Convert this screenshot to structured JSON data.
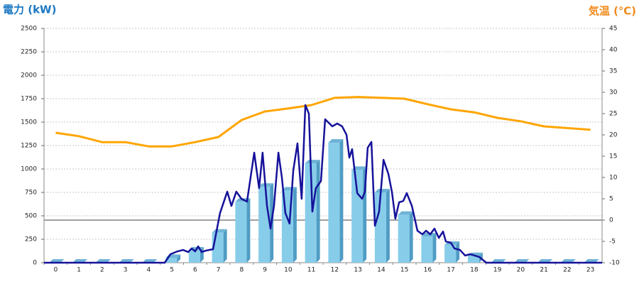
{
  "chart_data": {
    "type": "combo",
    "y_label": "電力 (kW)",
    "y2_label": "気温 (℃)",
    "categories": [
      0,
      1,
      2,
      3,
      4,
      5,
      6,
      7,
      8,
      9,
      10,
      11,
      12,
      13,
      14,
      15,
      16,
      17,
      18,
      19,
      20,
      21,
      22,
      23
    ],
    "ylim": [
      0,
      2500
    ],
    "yticks": [
      0,
      250,
      500,
      750,
      1000,
      1250,
      1500,
      1750,
      2000,
      2250,
      2500
    ],
    "y2lim": [
      -10,
      45
    ],
    "y2ticks": [
      -10,
      -5,
      0,
      5,
      10,
      15,
      20,
      25,
      30,
      35,
      40,
      45
    ],
    "xlim": [
      0,
      24
    ],
    "grid": true,
    "series": [
      {
        "type": "bar",
        "color": "#87cdea",
        "values": [
          0,
          0,
          0,
          0,
          0,
          50,
          130,
          320,
          650,
          810,
          770,
          1060,
          1280,
          990,
          750,
          510,
          280,
          190,
          70,
          0,
          0,
          0,
          0,
          0
        ]
      },
      {
        "type": "line",
        "axis": "y2",
        "color": "#ffa500",
        "values": [
          20.5,
          19.7,
          18.3,
          18.3,
          17.3,
          17.3,
          18.3,
          19.5,
          23.5,
          25.5,
          26.2,
          27,
          28.7,
          28.9,
          28.7,
          28.5,
          27.2,
          26,
          25.3,
          24,
          23.2,
          22,
          21.6,
          21.2
        ]
      },
      {
        "type": "line",
        "color": "#16129a",
        "x": [
          0,
          5.19,
          5.44,
          5.74,
          5.98,
          6.2,
          6.35,
          6.5,
          6.63,
          6.78,
          6.96,
          7.27,
          7.57,
          7.88,
          8.06,
          8.27,
          8.49,
          8.73,
          9.04,
          9.25,
          9.4,
          9.59,
          9.74,
          9.89,
          10.08,
          10.23,
          10.38,
          10.56,
          10.72,
          10.9,
          11.08,
          11.24,
          11.39,
          11.54,
          11.69,
          11.91,
          12.09,
          12.4,
          12.61,
          12.82,
          13.01,
          13.13,
          13.25,
          13.47,
          13.68,
          13.8,
          13.92,
          14.08,
          14.23,
          14.41,
          14.6,
          14.81,
          14.96,
          15.11,
          15.27,
          15.45,
          15.6,
          15.82,
          16.06,
          16.27,
          16.43,
          16.61,
          16.79,
          16.98,
          17.16,
          17.28,
          17.5,
          17.65,
          17.89,
          18.11,
          18.32,
          18.72,
          19.02,
          24
        ],
        "values": [
          0,
          0,
          91,
          121,
          136,
          114,
          152,
          121,
          174,
          114,
          129,
          144,
          530,
          758,
          606,
          758,
          682,
          652,
          1174,
          795,
          1174,
          606,
          364,
          606,
          1174,
          909,
          530,
          417,
          985,
          1273,
          682,
          1682,
          1591,
          545,
          795,
          871,
          1530,
          1455,
          1485,
          1455,
          1364,
          1121,
          1212,
          742,
          682,
          758,
          1227,
          1288,
          394,
          545,
          1098,
          947,
          758,
          470,
          644,
          659,
          742,
          606,
          341,
          303,
          341,
          303,
          364,
          265,
          333,
          227,
          212,
          152,
          136,
          76,
          91,
          61,
          0,
          0
        ]
      }
    ]
  }
}
